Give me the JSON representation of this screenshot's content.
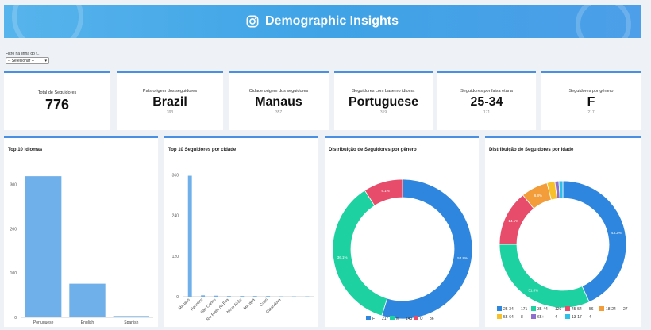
{
  "header": {
    "title": "Demographic Insights",
    "icon": "instagram-icon",
    "color_start": "#57b4ec",
    "color_end": "#4c9fe8"
  },
  "filter": {
    "label": "Filtro na linha do t...",
    "selected": "-- Selecionar --"
  },
  "kpis": [
    {
      "label": "Total de Seguidores",
      "value": "776",
      "sub": ""
    },
    {
      "label": "País origem dos seguidores",
      "value": "Brazil",
      "sub": "393"
    },
    {
      "label": "Cidade origem dos seguidores",
      "value": "Manaus",
      "sub": "357"
    },
    {
      "label": "Seguidores com base no idioma",
      "value": "Portuguese",
      "sub": "319"
    },
    {
      "label": "Seguidores por faixa etária",
      "value": "25-34",
      "sub": "171"
    },
    {
      "label": "Seguidores por gênero",
      "value": "F",
      "sub": "217"
    }
  ],
  "panels": {
    "languages": {
      "title": "Top 10 idiomas"
    },
    "cities": {
      "title": "Top 10 Seguidores por cidade"
    },
    "gender": {
      "title": "Distribuição de Seguidores por gênero"
    },
    "age": {
      "title": "Distribuição de Seguidores por idade"
    }
  },
  "chart_data": [
    {
      "type": "bar",
      "title": "Top 10 idiomas",
      "categories": [
        "Portuguese",
        "English",
        "Spanish"
      ],
      "values": [
        319,
        76,
        3
      ],
      "ylim": [
        0,
        330
      ],
      "yticks": [
        0,
        100,
        200,
        300
      ],
      "color": "#6fb0ea"
    },
    {
      "type": "bar",
      "title": "Top 10 Seguidores por cidade",
      "categories": [
        "Manaus",
        "Parintins",
        "São Carlos",
        "Rio Preto da Eva",
        "Novo Airão",
        "Macapá",
        "Coari",
        "Catanduva",
        "",
        ""
      ],
      "values": [
        357,
        4,
        3,
        2,
        2,
        2,
        2,
        1,
        1,
        1
      ],
      "ylim": [
        0,
        370
      ],
      "yticks": [
        0,
        120,
        240,
        360
      ],
      "color": "#6fb0ea"
    },
    {
      "type": "pie",
      "title": "Distribuição de Seguidores por gênero",
      "series": [
        {
          "name": "F",
          "value": 217,
          "label": "54.8%",
          "color": "#2e86de"
        },
        {
          "name": "M",
          "value": 143,
          "label": "36.1%",
          "color": "#1dd1a1"
        },
        {
          "name": "U",
          "value": 36,
          "label": "9.1%",
          "color": "#e84c6b"
        }
      ]
    },
    {
      "type": "pie",
      "title": "Distribuição de Seguidores por idade",
      "series": [
        {
          "name": "25-34",
          "value": 171,
          "label": "43.2%",
          "color": "#2e86de"
        },
        {
          "name": "35-44",
          "value": 126,
          "label": "31.8%",
          "color": "#1dd1a1"
        },
        {
          "name": "45-54",
          "value": 56,
          "label": "14.1%",
          "color": "#e84c6b"
        },
        {
          "name": "18-24",
          "value": 27,
          "label": "6.8%",
          "color": "#f39c3a"
        },
        {
          "name": "55-64",
          "value": 8,
          "label": "",
          "color": "#f6c12b"
        },
        {
          "name": "65+",
          "value": 4,
          "label": "",
          "color": "#8e6fd0"
        },
        {
          "name": "13-17",
          "value": 4,
          "label": "",
          "color": "#2fc0e8"
        }
      ]
    }
  ]
}
